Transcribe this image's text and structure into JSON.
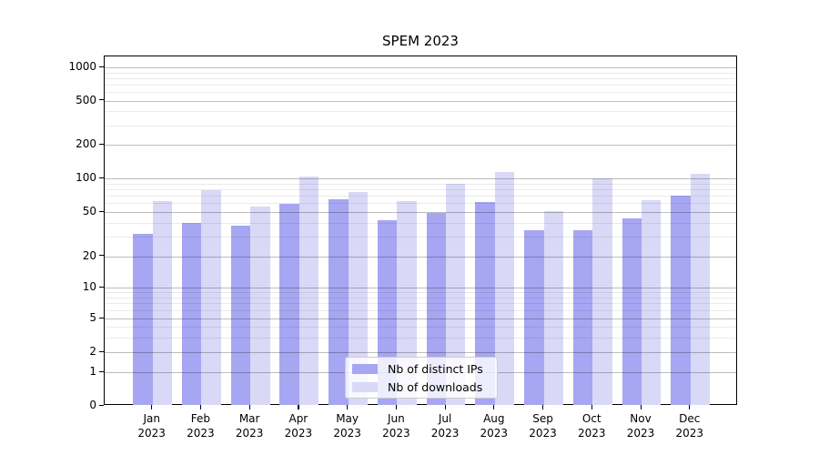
{
  "figure": {
    "title": "SPEM 2023"
  },
  "chart_data": {
    "type": "bar",
    "title": "SPEM 2023",
    "categories": [
      "Jan 2023",
      "Feb 2023",
      "Mar 2023",
      "Apr 2023",
      "May 2023",
      "Jun 2023",
      "Jul 2023",
      "Aug 2023",
      "Sep 2023",
      "Oct 2023",
      "Nov 2023",
      "Dec 2023"
    ],
    "x_tick_line1": [
      "Jan",
      "Feb",
      "Mar",
      "Apr",
      "May",
      "Jun",
      "Jul",
      "Aug",
      "Sep",
      "Oct",
      "Nov",
      "Dec"
    ],
    "x_tick_line2": "2023",
    "series": [
      {
        "name": "Nb of distinct IPs",
        "color": "#a6a6f2",
        "values": [
          32,
          40,
          38,
          59,
          65,
          42,
          49,
          62,
          34,
          34,
          44,
          70
        ]
      },
      {
        "name": "Nb of downloads",
        "color": "#d9d9f7",
        "values": [
          63,
          78,
          56,
          103,
          75,
          63,
          89,
          114,
          51,
          100,
          64,
          110
        ]
      }
    ],
    "y_axis": {
      "scale": "symlog",
      "tick_values": [
        0,
        1,
        2,
        5,
        10,
        20,
        50,
        100,
        200,
        500,
        1000
      ],
      "tick_labels": [
        "0",
        "1",
        "2",
        "5",
        "10",
        "20",
        "50",
        "100",
        "200",
        "500",
        "1000"
      ],
      "minor_gridline_values": [
        3,
        4,
        6,
        7,
        8,
        9,
        30,
        40,
        60,
        70,
        80,
        90,
        300,
        400,
        600,
        700,
        800,
        900
      ],
      "ylim_approx": [
        0,
        1300
      ],
      "grid": "horizontal major and minor"
    },
    "legend": {
      "position": "lower center",
      "entries": [
        "Nb of distinct IPs",
        "Nb of downloads"
      ]
    },
    "colors": {
      "background": "#ffffff",
      "axis": "#000000",
      "bar_distinct_ips": "#a6a6f2",
      "bar_downloads": "#d9d9f7"
    }
  }
}
